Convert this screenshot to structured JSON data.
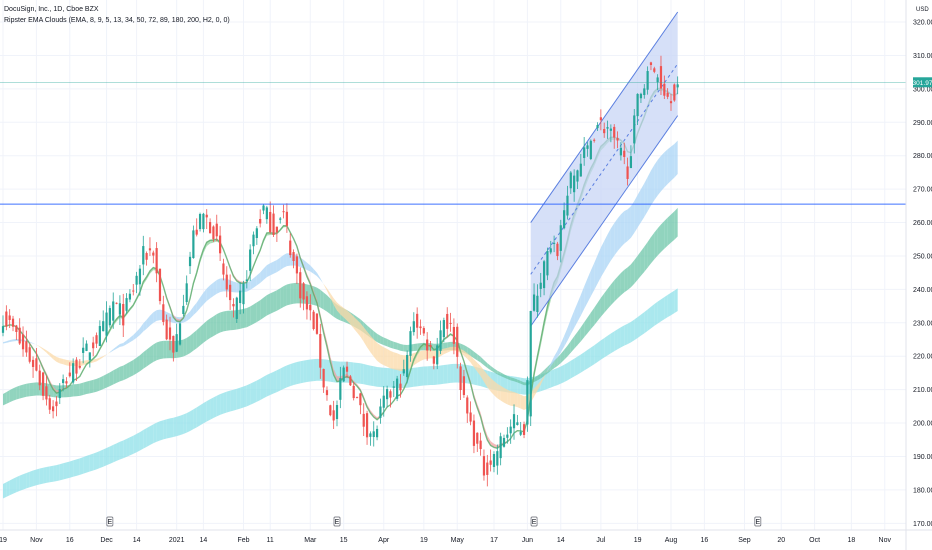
{
  "header": {
    "symbol_line": "DocuSign, Inc., 1D, Cboe BZX",
    "indicator_line": "Ripster EMA Clouds (EMA, 8, 9, 5, 13, 34, 50, 72, 89, 180, 200, H2, 0, 0)",
    "currency": "USD"
  },
  "colors": {
    "up": "#26a69a",
    "down": "#ef5350",
    "channel_fill": "#c5d3f5",
    "channel_line": "#5b7fe0",
    "hline_blue": "#2962ff",
    "price_line": "#26a69a",
    "price_badge": "#26a69a",
    "cloud_fast_green": "#8fd19e",
    "cloud_fast_red": "#f2a3a3",
    "cloud_mid_blue": "#a9d4f5",
    "cloud_mid_orange": "#fbd9a8",
    "cloud_slow_green": "#6cc6a8",
    "cloud_slowest_cyan": "#8ee0e8"
  },
  "chart_data": {
    "type": "candlestick",
    "title": "DocuSign, Inc., 1D, Cboe BZX",
    "indicator": "Ripster EMA Clouds (EMA, 8, 9, 5, 13, 34, 50, 72, 89, 180, 200, H2, 0, 0)",
    "ylim": [
      168,
      323
    ],
    "yticks": [
      170,
      180,
      190,
      200,
      210,
      220,
      230,
      240,
      250,
      260,
      270,
      280,
      290,
      300,
      310,
      320
    ],
    "ytick_labels": [
      "170.00",
      "180.00",
      "190.00",
      "200.00",
      "210.00",
      "220.00",
      "230.00",
      "240.00",
      "250.00",
      "260.00",
      "270.00",
      "280.00",
      "290.00",
      "300.00",
      "310.00",
      "320.00"
    ],
    "xticks": [
      {
        "label": "19",
        "i": 0
      },
      {
        "label": "Nov",
        "i": 10
      },
      {
        "label": "16",
        "i": 20
      },
      {
        "label": "Dec",
        "i": 31
      },
      {
        "label": "14",
        "i": 40
      },
      {
        "label": "2021",
        "i": 52
      },
      {
        "label": "14",
        "i": 60
      },
      {
        "label": "Feb",
        "i": 72
      },
      {
        "label": "11",
        "i": 80
      },
      {
        "label": "Mar",
        "i": 92
      },
      {
        "label": "15",
        "i": 102
      },
      {
        "label": "Apr",
        "i": 114
      },
      {
        "label": "19",
        "i": 126
      },
      {
        "label": "May",
        "i": 136
      },
      {
        "label": "17",
        "i": 147
      },
      {
        "label": "Jun",
        "i": 157
      },
      {
        "label": "14",
        "i": 167
      },
      {
        "label": "Jul",
        "i": 179
      },
      {
        "label": "19",
        "i": 190
      },
      {
        "label": "Aug",
        "i": 200
      },
      {
        "label": "16",
        "i": 210
      },
      {
        "label": "Sep",
        "i": 222
      },
      {
        "label": "20",
        "i": 233
      },
      {
        "label": "Oct",
        "i": 243
      },
      {
        "label": "18",
        "i": 254
      },
      {
        "label": "Nov",
        "i": 264
      }
    ],
    "earnings_markers": [
      {
        "label": "E",
        "i": 32
      },
      {
        "label": "E",
        "i": 100
      },
      {
        "label": "E",
        "i": 159
      },
      {
        "label": "E",
        "i": 226
      }
    ],
    "close_anchors": [
      [
        0,
        232
      ],
      [
        3,
        228
      ],
      [
        6,
        222
      ],
      [
        9,
        218
      ],
      [
        12,
        210
      ],
      [
        15,
        204
      ],
      [
        18,
        212
      ],
      [
        21,
        216
      ],
      [
        24,
        220
      ],
      [
        27,
        224
      ],
      [
        30,
        228
      ],
      [
        33,
        236
      ],
      [
        36,
        232
      ],
      [
        39,
        240
      ],
      [
        42,
        250
      ],
      [
        45,
        252
      ],
      [
        48,
        230
      ],
      [
        51,
        220
      ],
      [
        54,
        238
      ],
      [
        57,
        256
      ],
      [
        60,
        262
      ],
      [
        63,
        258
      ],
      [
        66,
        244
      ],
      [
        69,
        232
      ],
      [
        72,
        240
      ],
      [
        75,
        256
      ],
      [
        78,
        264
      ],
      [
        81,
        258
      ],
      [
        84,
        262
      ],
      [
        87,
        248
      ],
      [
        90,
        236
      ],
      [
        93,
        230
      ],
      [
        96,
        212
      ],
      [
        99,
        200
      ],
      [
        102,
        216
      ],
      [
        105,
        210
      ],
      [
        108,
        200
      ],
      [
        111,
        196
      ],
      [
        114,
        206
      ],
      [
        117,
        210
      ],
      [
        120,
        214
      ],
      [
        123,
        232
      ],
      [
        126,
        226
      ],
      [
        129,
        220
      ],
      [
        132,
        232
      ],
      [
        135,
        226
      ],
      [
        138,
        206
      ],
      [
        141,
        196
      ],
      [
        144,
        186
      ],
      [
        147,
        190
      ],
      [
        150,
        196
      ],
      [
        153,
        200
      ],
      [
        156,
        198
      ],
      [
        158,
        232
      ],
      [
        160,
        240
      ],
      [
        163,
        250
      ],
      [
        166,
        252
      ],
      [
        169,
        270
      ],
      [
        172,
        276
      ],
      [
        175,
        282
      ],
      [
        178,
        290
      ],
      [
        181,
        288
      ],
      [
        184,
        282
      ],
      [
        187,
        276
      ],
      [
        190,
        296
      ],
      [
        193,
        306
      ],
      [
        196,
        304
      ],
      [
        199,
        298
      ],
      [
        202,
        300
      ]
    ],
    "last_price": 301.97,
    "last_price_label": "301.97",
    "horizontal_lines": [
      {
        "y": 265.5,
        "color": "blue"
      },
      {
        "y": 301.97,
        "color": "green"
      }
    ],
    "channel": {
      "lower_start": [
        158,
        229
      ],
      "lower_end": [
        202,
        292
      ],
      "upper_start": [
        158,
        260
      ],
      "upper_end": [
        202,
        323
      ]
    },
    "ema_clouds": [
      {
        "name": "fast",
        "periods": [
          8,
          9
        ]
      },
      {
        "name": "mid",
        "periods": [
          34,
          50
        ]
      },
      {
        "name": "slow",
        "periods": [
          72,
          89
        ]
      },
      {
        "name": "slowest",
        "periods": [
          180,
          200
        ]
      }
    ]
  }
}
